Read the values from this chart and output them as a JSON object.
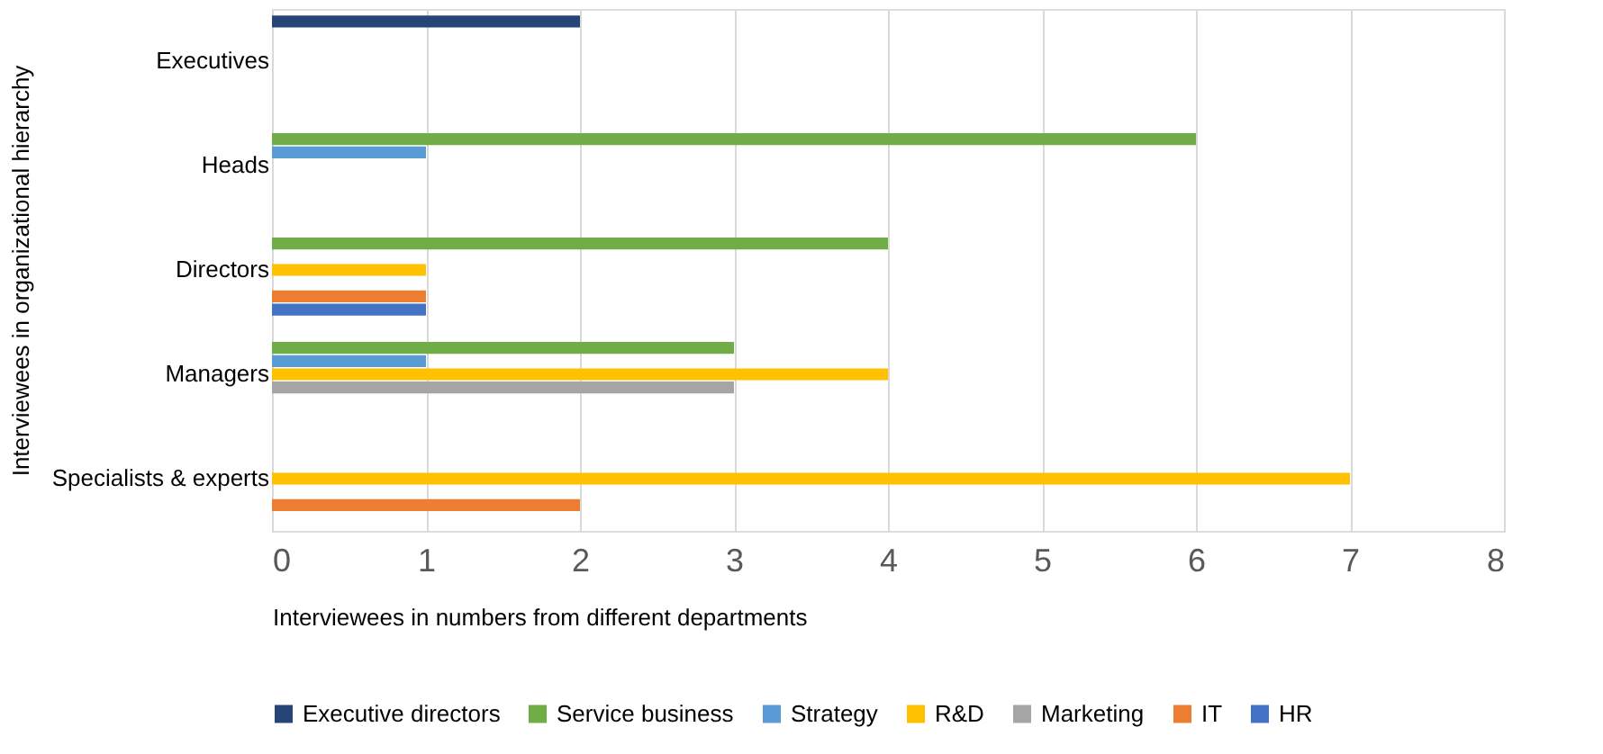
{
  "chart_data": {
    "type": "bar",
    "orientation": "horizontal",
    "xlabel": "Interviewees in numbers from different departments",
    "ylabel": "Interviewees in organizational hierarchy",
    "categories": [
      "Executives",
      "Heads",
      "Directors",
      "Managers",
      "Specialists & experts"
    ],
    "series": [
      {
        "name": "Executive directors",
        "color": "#264478",
        "values": [
          2,
          null,
          null,
          null,
          null
        ]
      },
      {
        "name": "Service business",
        "color": "#70ad47",
        "values": [
          null,
          6,
          4,
          3,
          null
        ]
      },
      {
        "name": "Strategy",
        "color": "#5b9bd5",
        "values": [
          null,
          1,
          null,
          1,
          null
        ]
      },
      {
        "name": "R&D",
        "color": "#ffc000",
        "values": [
          null,
          null,
          1,
          4,
          7
        ]
      },
      {
        "name": "Marketing",
        "color": "#a5a5a5",
        "values": [
          null,
          null,
          null,
          3,
          null
        ]
      },
      {
        "name": "IT",
        "color": "#ed7d31",
        "values": [
          null,
          null,
          1,
          null,
          2
        ]
      },
      {
        "name": "HR",
        "color": "#4472c4",
        "values": [
          null,
          null,
          1,
          null,
          null
        ]
      }
    ],
    "xlim": [
      0,
      8
    ],
    "xticks": [
      0,
      1,
      2,
      3,
      4,
      5,
      6,
      7,
      8
    ],
    "grid": "x",
    "legend": "bottom"
  }
}
